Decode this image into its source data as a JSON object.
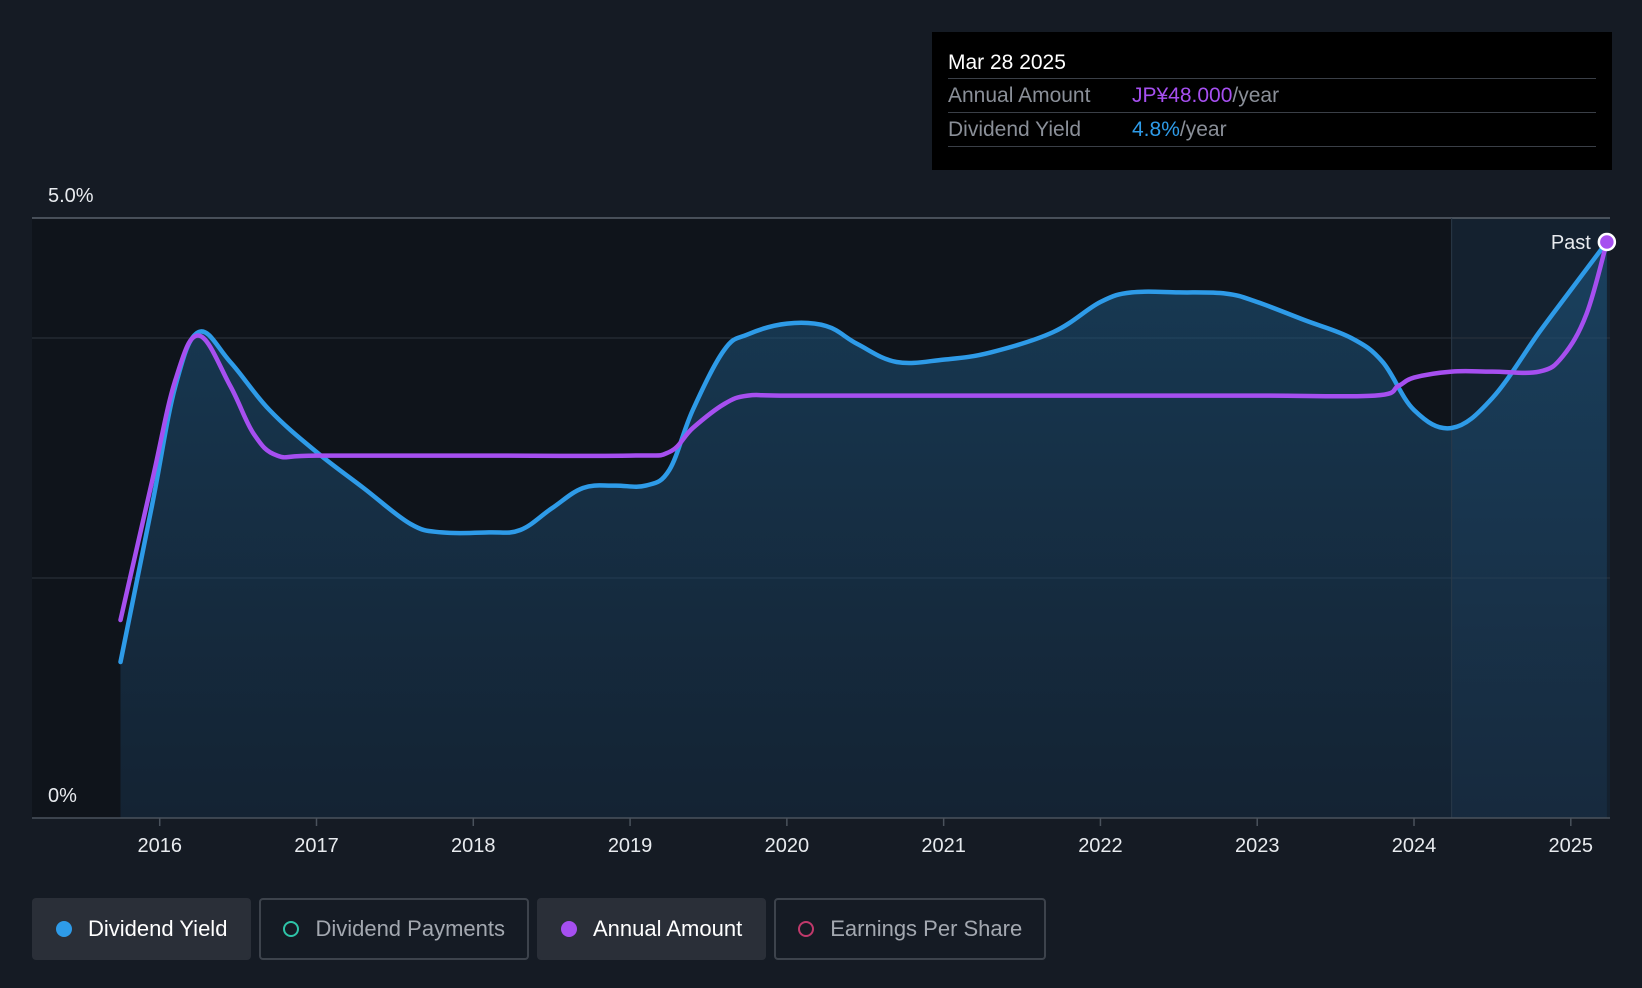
{
  "tooltip": {
    "date": "Mar 28 2025",
    "rows": [
      {
        "label": "Annual Amount",
        "value": "JP¥48.000",
        "unit": "/year"
      },
      {
        "label": "Dividend Yield",
        "value": "4.8%",
        "unit": "/year"
      }
    ]
  },
  "past_label": "Past",
  "legend": [
    {
      "label": "Dividend Yield",
      "color": "#2e9be8",
      "active": true,
      "filled": true
    },
    {
      "label": "Dividend Payments",
      "color": "#2ec4a8",
      "active": false,
      "filled": false
    },
    {
      "label": "Annual Amount",
      "color": "#a64ff0",
      "active": true,
      "filled": true
    },
    {
      "label": "Earnings Per Share",
      "color": "#c0396b",
      "active": false,
      "filled": false
    }
  ],
  "chart_data": {
    "type": "line",
    "ylim": [
      0,
      5.0
    ],
    "y_tick_labels": [
      {
        "value": 5.0,
        "label": "5.0%"
      },
      {
        "value": 0,
        "label": "0%"
      }
    ],
    "y_gridlines": [
      5.0,
      4.0,
      2.0
    ],
    "xlim": [
      2015.6,
      2025.25
    ],
    "x_ticks": [
      2016,
      2017,
      2018,
      2019,
      2020,
      2021,
      2022,
      2023,
      2024,
      2025
    ],
    "past_marker_x": 2024.24,
    "series": [
      {
        "name": "Dividend Yield",
        "color": "#2e9be8",
        "x": [
          2015.75,
          2015.95,
          2016.1,
          2016.25,
          2016.45,
          2016.7,
          2017.0,
          2017.3,
          2017.6,
          2017.8,
          2018.1,
          2018.3,
          2018.5,
          2018.7,
          2018.9,
          2019.1,
          2019.25,
          2019.4,
          2019.6,
          2019.75,
          2020.0,
          2020.25,
          2020.45,
          2020.7,
          2021.0,
          2021.3,
          2021.7,
          2022.0,
          2022.2,
          2022.5,
          2022.8,
          2023.0,
          2023.3,
          2023.6,
          2023.8,
          2024.0,
          2024.24,
          2024.5,
          2024.8,
          2025.0,
          2025.23
        ],
        "values": [
          1.3,
          2.6,
          3.6,
          4.05,
          3.8,
          3.4,
          3.05,
          2.75,
          2.45,
          2.38,
          2.38,
          2.4,
          2.58,
          2.75,
          2.77,
          2.77,
          2.9,
          3.4,
          3.9,
          4.03,
          4.12,
          4.1,
          3.95,
          3.8,
          3.82,
          3.88,
          4.05,
          4.3,
          4.38,
          4.38,
          4.37,
          4.3,
          4.15,
          4.0,
          3.8,
          3.4,
          3.25,
          3.5,
          4.05,
          4.4,
          4.8
        ]
      },
      {
        "name": "Annual Amount",
        "color": "#a64ff0",
        "x": [
          2015.75,
          2015.95,
          2016.1,
          2016.25,
          2016.45,
          2016.6,
          2016.75,
          2017.0,
          2018.0,
          2019.0,
          2019.25,
          2019.4,
          2019.6,
          2019.75,
          2020.0,
          2021.0,
          2022.0,
          2023.0,
          2023.75,
          2023.9,
          2024.0,
          2024.24,
          2024.5,
          2024.8,
          2024.95,
          2025.1,
          2025.23
        ],
        "values": [
          1.65,
          2.8,
          3.65,
          4.02,
          3.6,
          3.2,
          3.02,
          3.02,
          3.02,
          3.02,
          3.05,
          3.25,
          3.45,
          3.52,
          3.52,
          3.52,
          3.52,
          3.52,
          3.52,
          3.6,
          3.67,
          3.72,
          3.72,
          3.72,
          3.85,
          4.2,
          4.8
        ]
      }
    ]
  }
}
